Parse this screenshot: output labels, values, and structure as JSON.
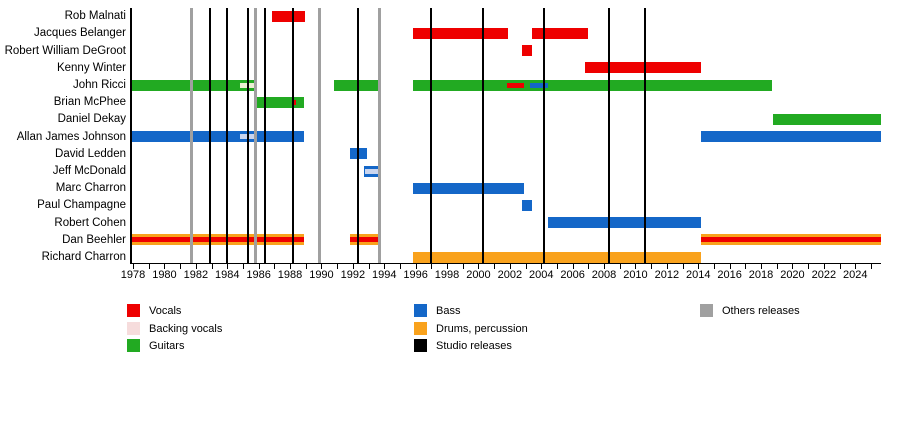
{
  "page": {
    "background": "#ffffff",
    "title": ""
  },
  "chart_data": {
    "type": "timeline",
    "title": "",
    "x_axis": {
      "start_year": 1977.87,
      "end_year": 2025.65,
      "tick_every_years": 1,
      "label_every_years": 2,
      "first_label": 1978,
      "last_label": 2024
    },
    "colors": {
      "vocals": "#ee0000",
      "backing_vocals": "#f6dcdc",
      "guitars": "#22aa22",
      "bass": "#1467c8",
      "drums": "#f9a21c",
      "studio": "#000000",
      "others": "#a0a0a0",
      "backing_on_green": "#eaf0d2",
      "backing_on_blue": "#c9d5ef",
      "axis": "#000000"
    },
    "members": [
      {
        "name": "Rob Malnati",
        "bars": [
          {
            "role": "vocals",
            "start": 1986.85,
            "end": 1988.95
          }
        ],
        "overlays": []
      },
      {
        "name": "Jacques Belanger",
        "bars": [
          {
            "role": "vocals",
            "start": 1995.8,
            "end": 2001.9
          },
          {
            "role": "vocals",
            "start": 2003.4,
            "end": 2007.0
          }
        ],
        "overlays": []
      },
      {
        "name": "Robert William DeGroot",
        "bars": [
          {
            "role": "vocals",
            "start": 2002.8,
            "end": 2003.4
          }
        ],
        "overlays": []
      },
      {
        "name": "Kenny Winter",
        "bars": [
          {
            "role": "vocals",
            "start": 2006.8,
            "end": 2014.2
          }
        ],
        "overlays": []
      },
      {
        "name": "John Ricci",
        "bars": [
          {
            "role": "guitars",
            "start": 1977.9,
            "end": 1985.8
          },
          {
            "role": "guitars",
            "start": 1990.8,
            "end": 1993.7
          },
          {
            "role": "guitars",
            "start": 1995.8,
            "end": 2018.7
          }
        ],
        "overlays": [
          {
            "role": "backing_vocals",
            "color_key": "backing_on_green",
            "start": 1984.8,
            "end": 1985.8
          },
          {
            "role": "vocals",
            "color_key": "vocals",
            "start": 2001.8,
            "end": 2002.9
          },
          {
            "role": "bass",
            "color_key": "bass",
            "start": 2003.3,
            "end": 2004.4
          }
        ]
      },
      {
        "name": "Brian McPhee",
        "bars": [
          {
            "role": "guitars",
            "start": 1985.8,
            "end": 1988.9
          }
        ],
        "overlays": [
          {
            "role": "vocals",
            "color_key": "vocals",
            "start": 1988.1,
            "end": 1988.4
          }
        ]
      },
      {
        "name": "Daniel Dekay",
        "bars": [
          {
            "role": "guitars",
            "start": 2018.75,
            "end": 2025.65
          }
        ],
        "overlays": []
      },
      {
        "name": "Allan James Johnson",
        "bars": [
          {
            "role": "bass",
            "start": 1977.9,
            "end": 1988.9
          },
          {
            "role": "bass",
            "start": 2014.2,
            "end": 2025.65
          }
        ],
        "overlays": [
          {
            "role": "backing_vocals",
            "color_key": "backing_on_blue",
            "start": 1984.8,
            "end": 1985.8
          }
        ]
      },
      {
        "name": "David Ledden",
        "bars": [
          {
            "role": "bass",
            "start": 1991.8,
            "end": 1992.9
          }
        ],
        "overlays": []
      },
      {
        "name": "Jeff McDonald",
        "bars": [
          {
            "role": "bass",
            "start": 1992.7,
            "end": 1993.7
          }
        ],
        "overlays": [
          {
            "role": "backing_vocals",
            "color_key": "backing_on_blue",
            "start": 1992.75,
            "end": 1993.65
          }
        ]
      },
      {
        "name": "Marc Charron",
        "bars": [
          {
            "role": "bass",
            "start": 1995.8,
            "end": 2002.9
          }
        ],
        "overlays": []
      },
      {
        "name": "Paul Champagne",
        "bars": [
          {
            "role": "bass",
            "start": 2002.8,
            "end": 2003.4
          }
        ],
        "overlays": []
      },
      {
        "name": "Robert Cohen",
        "bars": [
          {
            "role": "bass",
            "start": 2004.4,
            "end": 2014.2
          }
        ],
        "overlays": []
      },
      {
        "name": "Dan Beehler",
        "bars": [
          {
            "role": "drums",
            "start": 1977.9,
            "end": 1988.9
          },
          {
            "role": "drums",
            "start": 1991.8,
            "end": 1993.7
          },
          {
            "role": "drums",
            "start": 2014.2,
            "end": 2025.65
          }
        ],
        "overlays": [
          {
            "role": "vocals",
            "color_key": "vocals",
            "start": 1977.9,
            "end": 1988.9
          },
          {
            "role": "vocals",
            "color_key": "vocals",
            "start": 1991.8,
            "end": 1993.7
          },
          {
            "role": "vocals",
            "color_key": "vocals",
            "start": 2014.2,
            "end": 2025.65
          }
        ]
      },
      {
        "name": "Richard Charron",
        "bars": [
          {
            "role": "drums",
            "start": 1995.8,
            "end": 2014.2
          }
        ],
        "overlays": []
      }
    ],
    "releases": {
      "studio_years": [
        1982.9,
        1984.0,
        1985.3,
        1986.4,
        1988.2,
        1992.3,
        1997.0,
        2000.3,
        2004.2,
        2008.3,
        2010.6
      ],
      "others_years": [
        1981.7,
        1985.8,
        1989.85,
        1993.7
      ]
    }
  },
  "legend": {
    "columns": [
      {
        "items": [
          {
            "label": "Vocals",
            "color_key": "vocals"
          },
          {
            "label": "Backing vocals",
            "color_key": "backing_vocals"
          },
          {
            "label": "Guitars",
            "color_key": "guitars"
          }
        ]
      },
      {
        "items": [
          {
            "label": "Bass",
            "color_key": "bass"
          },
          {
            "label": "Drums, percussion",
            "color_key": "drums"
          },
          {
            "label": "Studio releases",
            "color_key": "studio"
          }
        ]
      },
      {
        "items": [
          {
            "label": "Others releases",
            "color_key": "others"
          }
        ]
      }
    ]
  }
}
